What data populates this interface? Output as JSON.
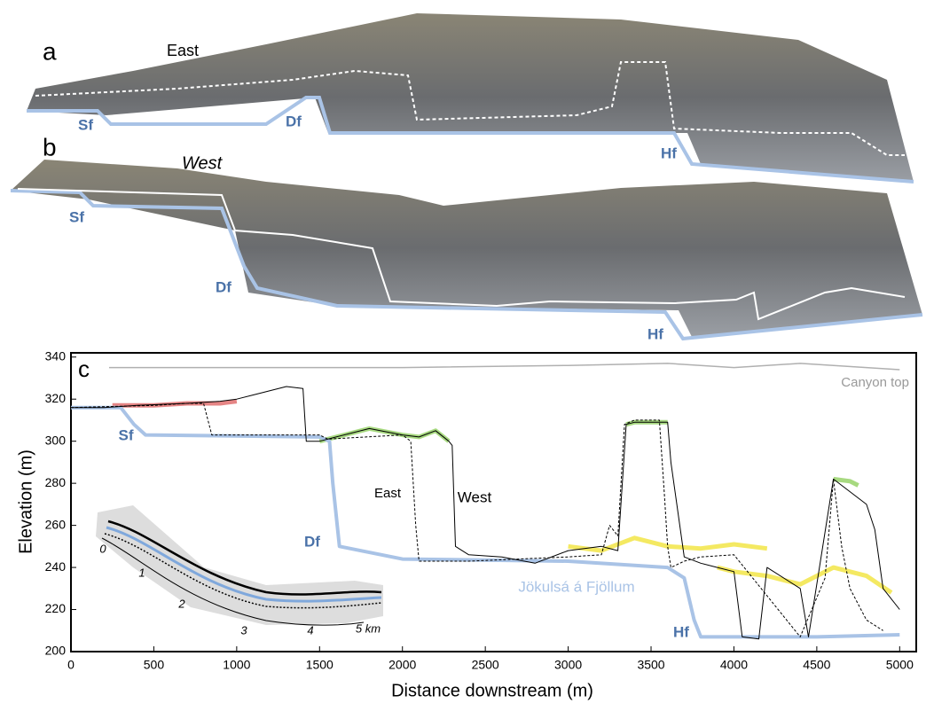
{
  "photo_a": {
    "panel": "a",
    "side": "East",
    "labels": [
      "Sf",
      "Df",
      "Hf"
    ]
  },
  "photo_b": {
    "panel": "b",
    "side": "West",
    "labels": [
      "Sf",
      "Df",
      "Hf"
    ]
  },
  "chart_data": {
    "type": "line",
    "panel": "c",
    "x_label": "Distance downstream (m)",
    "y_label": "Elevation (m)",
    "xlim": [
      0,
      5100
    ],
    "ylim": [
      200,
      342
    ],
    "xticks": [
      0,
      500,
      1000,
      1500,
      2000,
      2500,
      3000,
      3500,
      4000,
      4500,
      5000
    ],
    "yticks": [
      200,
      220,
      240,
      260,
      280,
      300,
      320,
      340
    ],
    "annotations": [
      "Sf",
      "Df",
      "Hf"
    ],
    "inset_labels": [
      "0",
      "1",
      "2",
      "3",
      "4",
      "5 km"
    ],
    "series": [
      {
        "name": "Canyon top",
        "color": "#b0b0b0",
        "x": [
          230,
          1000,
          2000,
          3000,
          3600,
          4000,
          4400,
          5000
        ],
        "values": [
          335,
          335,
          335,
          336,
          337,
          335,
          337,
          334
        ]
      },
      {
        "name": "Jökulsá á Fjöllum",
        "color": "#a9c3e6",
        "x": [
          0,
          300,
          380,
          450,
          1500,
          1560,
          1580,
          1620,
          2000,
          3000,
          3600,
          3700,
          3760,
          3800,
          4500,
          5000
        ],
        "values": [
          316,
          316,
          308,
          303,
          302,
          300,
          280,
          250,
          244,
          243,
          240,
          235,
          215,
          207,
          207,
          208
        ]
      },
      {
        "name": "West",
        "color": "#000000",
        "x": [
          0,
          200,
          400,
          700,
          900,
          1000,
          1100,
          1300,
          1400,
          1420,
          1500,
          1600,
          1800,
          2000,
          2100,
          2200,
          2280,
          2300,
          2320,
          2400,
          2600,
          2800,
          3000,
          3200,
          3300,
          3350,
          3400,
          3600,
          3620,
          3700,
          3800,
          3900,
          4000,
          4050,
          4150,
          4200,
          4400,
          4450,
          4600,
          4800,
          4850,
          4900,
          5000
        ],
        "values": [
          316,
          316,
          317,
          318,
          319,
          320,
          322,
          326,
          325,
          300,
          300,
          302,
          306,
          303,
          302,
          305,
          300,
          298,
          250,
          246,
          245,
          242,
          248,
          250,
          248,
          308,
          309,
          309,
          290,
          245,
          242,
          240,
          238,
          207,
          206,
          240,
          230,
          207,
          282,
          270,
          258,
          230,
          220
        ]
      },
      {
        "name": "East",
        "color": "#000000",
        "dash": true,
        "x": [
          0,
          500,
          700,
          800,
          850,
          1000,
          1300,
          1500,
          1550,
          2000,
          2050,
          2080,
          2100,
          2400,
          2700,
          3000,
          3200,
          3250,
          3300,
          3340,
          3400,
          3550,
          3580,
          3600,
          3620,
          3700,
          3800,
          4000,
          4400,
          4550,
          4600,
          4650,
          4700,
          4800,
          4900
        ],
        "values": [
          316,
          317,
          318,
          318,
          303,
          303,
          303,
          303,
          301,
          303,
          300,
          260,
          243,
          243,
          244,
          245,
          246,
          260,
          255,
          308,
          310,
          310,
          275,
          250,
          240,
          243,
          245,
          246,
          207,
          235,
          282,
          250,
          230,
          215,
          210
        ]
      },
      {
        "color": "#d02020",
        "x": [
          250,
          500,
          700,
          900,
          1000
        ],
        "values": [
          317,
          317,
          318,
          318,
          319
        ]
      },
      {
        "color": "#6cbf2c",
        "x": [
          1500,
          1600,
          1800,
          2000,
          2100,
          2200,
          2280,
          null,
          3350,
          3400,
          3600,
          null,
          4600,
          4700,
          4750
        ],
        "values": [
          300,
          302,
          306,
          303,
          302,
          305,
          300,
          null,
          308,
          309,
          309,
          null,
          282,
          281,
          279
        ]
      },
      {
        "color": "#f0e020",
        "x": [
          3000,
          3200,
          3400,
          3600,
          3800,
          4000,
          4200,
          null,
          3900,
          4000,
          4200,
          4400,
          4600,
          4800,
          4950
        ],
        "values": [
          250,
          248,
          254,
          250,
          249,
          251,
          249,
          null,
          240,
          238,
          236,
          232,
          240,
          236,
          228
        ]
      }
    ]
  }
}
